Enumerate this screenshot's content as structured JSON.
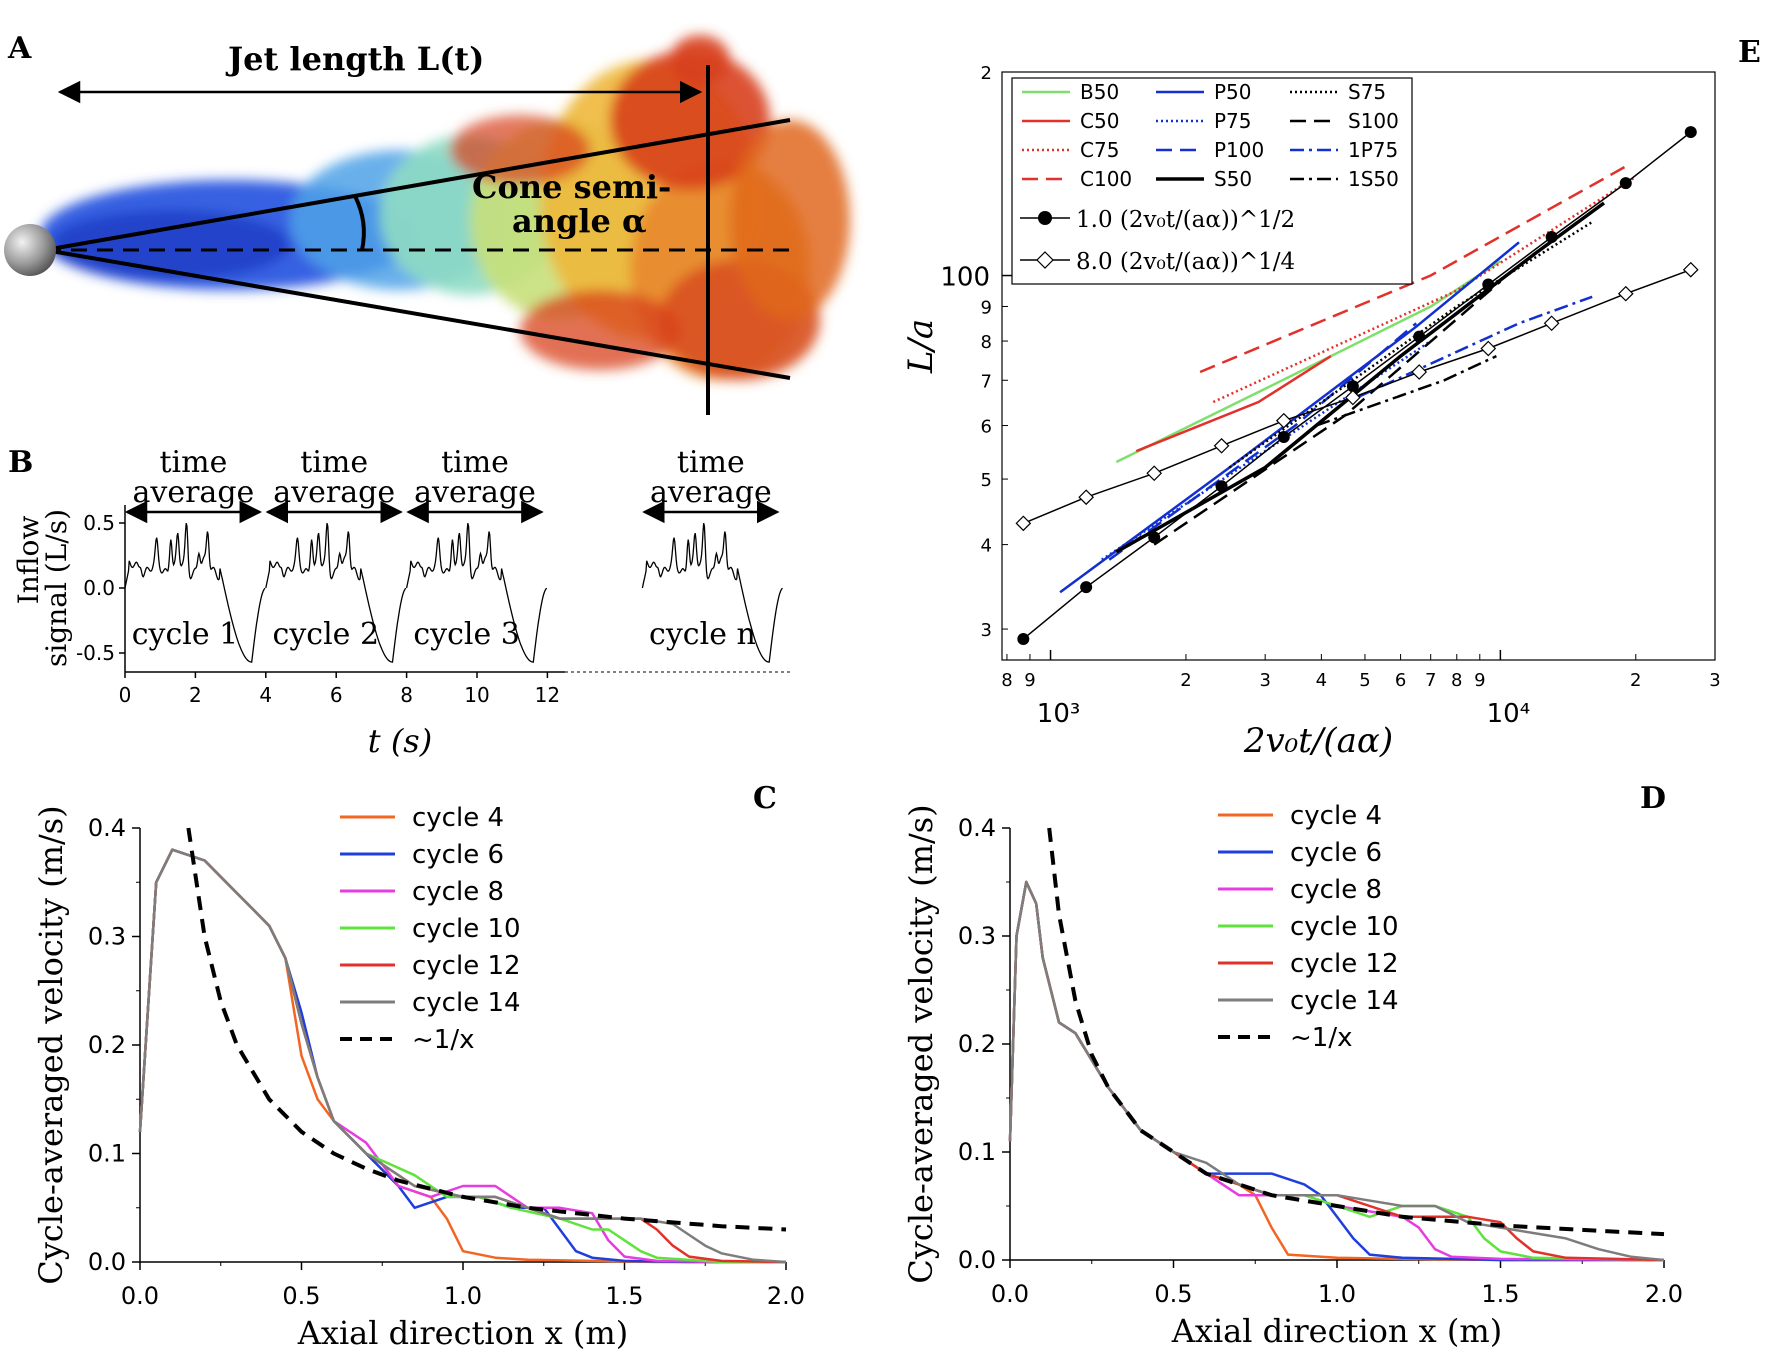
{
  "panel_labels": {
    "a": "A",
    "b": "B",
    "c": "C",
    "d": "D",
    "e": "E"
  },
  "colors": {
    "orange": "#f26522",
    "blue": "#1f3ede",
    "magenta": "#e53de0",
    "green": "#5fe33c",
    "red": "#e2302a",
    "gray": "#7d7d7d",
    "black": "#000000",
    "lightgreen": "#7ee06a",
    "deepblue": "#1230d0",
    "jet_blue": "#1e4fd8",
    "jet_cyan": "#7fd8c8",
    "jet_yellow": "#f0c030",
    "jet_red": "#d8401c"
  },
  "panel_a": {
    "jet_length_label": "Jet length L(t)",
    "cone_label_line1": "Cone semi-",
    "cone_label_line2": "angle α"
  },
  "panel_b": {
    "ylabel_line1": "Inflow",
    "ylabel_line2": "signal (L/s)",
    "xlabel": "t (s)",
    "yticks": [
      "0.5",
      "0.0",
      "-0.5"
    ],
    "xticks": [
      "0",
      "2",
      "4",
      "6",
      "8",
      "10",
      "12"
    ],
    "avg_word1": "time",
    "avg_word2": "average",
    "cycles": [
      "cycle 1",
      "cycle 2",
      "cycle 3",
      "cycle n"
    ]
  },
  "chart_data": [
    {
      "id": "C",
      "type": "line",
      "xlabel": "Axial direction x (m)",
      "ylabel": "Cycle-averaged velocity (m/s)",
      "xlim": [
        0,
        2.0
      ],
      "ylim": [
        0,
        0.4
      ],
      "xticks": [
        "0.0",
        "0.5",
        "1.0",
        "1.5",
        "2.0"
      ],
      "yticks": [
        "0.0",
        "0.1",
        "0.2",
        "0.3",
        "0.4"
      ],
      "series": [
        {
          "name": "cycle 4",
          "color": "#f26522",
          "x": [
            0,
            0.05,
            0.1,
            0.2,
            0.3,
            0.4,
            0.45,
            0.5,
            0.55,
            0.6,
            0.7,
            0.8,
            0.9,
            0.95,
            1.0,
            1.1,
            1.2,
            1.4,
            1.6,
            1.8,
            2.0
          ],
          "y": [
            0.12,
            0.35,
            0.38,
            0.37,
            0.34,
            0.31,
            0.28,
            0.19,
            0.15,
            0.13,
            0.1,
            0.07,
            0.06,
            0.04,
            0.01,
            0.004,
            0.002,
            0.001,
            0.0,
            0.0,
            0.0
          ]
        },
        {
          "name": "cycle 6",
          "color": "#1f3ede",
          "x": [
            0,
            0.05,
            0.1,
            0.2,
            0.3,
            0.4,
            0.45,
            0.5,
            0.55,
            0.6,
            0.7,
            0.8,
            0.85,
            0.95,
            1.05,
            1.15,
            1.25,
            1.3,
            1.35,
            1.4,
            1.5,
            1.7,
            2.0
          ],
          "y": [
            0.12,
            0.35,
            0.38,
            0.37,
            0.34,
            0.31,
            0.28,
            0.23,
            0.17,
            0.13,
            0.1,
            0.07,
            0.05,
            0.06,
            0.06,
            0.05,
            0.05,
            0.03,
            0.01,
            0.004,
            0.001,
            0.0,
            0.0
          ]
        },
        {
          "name": "cycle 8",
          "color": "#e53de0",
          "x": [
            0,
            0.05,
            0.1,
            0.2,
            0.3,
            0.4,
            0.45,
            0.5,
            0.55,
            0.6,
            0.7,
            0.8,
            0.9,
            1.0,
            1.1,
            1.2,
            1.3,
            1.4,
            1.45,
            1.5,
            1.6,
            1.8,
            2.0
          ],
          "y": [
            0.12,
            0.35,
            0.38,
            0.37,
            0.34,
            0.31,
            0.28,
            0.22,
            0.17,
            0.13,
            0.11,
            0.07,
            0.06,
            0.07,
            0.07,
            0.05,
            0.05,
            0.045,
            0.02,
            0.005,
            0.001,
            0.0,
            0.0
          ]
        },
        {
          "name": "cycle 10",
          "color": "#5fe33c",
          "x": [
            0,
            0.05,
            0.1,
            0.2,
            0.3,
            0.4,
            0.45,
            0.5,
            0.55,
            0.6,
            0.7,
            0.85,
            0.95,
            1.05,
            1.15,
            1.3,
            1.4,
            1.45,
            1.5,
            1.55,
            1.6,
            1.8,
            2.0
          ],
          "y": [
            0.12,
            0.35,
            0.38,
            0.37,
            0.34,
            0.31,
            0.28,
            0.22,
            0.17,
            0.13,
            0.1,
            0.08,
            0.06,
            0.06,
            0.05,
            0.04,
            0.03,
            0.03,
            0.02,
            0.01,
            0.004,
            0.0,
            0.0
          ]
        },
        {
          "name": "cycle 12",
          "color": "#e2302a",
          "x": [
            0,
            0.05,
            0.1,
            0.2,
            0.3,
            0.4,
            0.45,
            0.5,
            0.55,
            0.6,
            0.7,
            0.85,
            1.0,
            1.1,
            1.2,
            1.3,
            1.45,
            1.55,
            1.6,
            1.65,
            1.7,
            1.8,
            2.0
          ],
          "y": [
            0.12,
            0.35,
            0.38,
            0.37,
            0.34,
            0.31,
            0.28,
            0.22,
            0.17,
            0.13,
            0.1,
            0.07,
            0.06,
            0.06,
            0.05,
            0.04,
            0.04,
            0.04,
            0.03,
            0.015,
            0.005,
            0.001,
            0.0
          ]
        },
        {
          "name": "cycle 14",
          "color": "#7d7d7d",
          "x": [
            0,
            0.05,
            0.1,
            0.2,
            0.3,
            0.4,
            0.45,
            0.5,
            0.55,
            0.6,
            0.7,
            0.85,
            1.0,
            1.1,
            1.2,
            1.3,
            1.45,
            1.55,
            1.65,
            1.7,
            1.75,
            1.8,
            1.9,
            2.0
          ],
          "y": [
            0.12,
            0.35,
            0.38,
            0.37,
            0.34,
            0.31,
            0.28,
            0.22,
            0.17,
            0.13,
            0.1,
            0.07,
            0.06,
            0.06,
            0.05,
            0.04,
            0.04,
            0.04,
            0.035,
            0.025,
            0.015,
            0.008,
            0.002,
            0.0
          ]
        },
        {
          "name": "~1/x",
          "color": "#000000",
          "dash": true,
          "x": [
            0.15,
            0.2,
            0.25,
            0.3,
            0.4,
            0.5,
            0.6,
            0.7,
            0.8,
            1.0,
            1.2,
            1.5,
            1.8,
            2.0
          ],
          "y": [
            0.4,
            0.3,
            0.24,
            0.2,
            0.15,
            0.12,
            0.1,
            0.086,
            0.075,
            0.06,
            0.05,
            0.04,
            0.033,
            0.03
          ]
        }
      ]
    },
    {
      "id": "D",
      "type": "line",
      "xlabel": "Axial direction x (m)",
      "ylabel": "Cycle-averaged velocity (m/s)",
      "xlim": [
        0,
        2.0
      ],
      "ylim": [
        0,
        0.4
      ],
      "xticks": [
        "0.0",
        "0.5",
        "1.0",
        "1.5",
        "2.0"
      ],
      "yticks": [
        "0.0",
        "0.1",
        "0.2",
        "0.3",
        "0.4"
      ],
      "series": [
        {
          "name": "cycle 4",
          "color": "#f26522",
          "x": [
            0,
            0.02,
            0.05,
            0.08,
            0.1,
            0.15,
            0.2,
            0.3,
            0.4,
            0.5,
            0.6,
            0.7,
            0.75,
            0.8,
            0.85,
            1.0,
            1.2,
            1.5,
            2.0
          ],
          "y": [
            0.11,
            0.3,
            0.35,
            0.33,
            0.28,
            0.22,
            0.21,
            0.16,
            0.12,
            0.1,
            0.08,
            0.07,
            0.06,
            0.03,
            0.005,
            0.002,
            0.001,
            0.0,
            0.0
          ]
        },
        {
          "name": "cycle 6",
          "color": "#1f3ede",
          "x": [
            0,
            0.02,
            0.05,
            0.08,
            0.1,
            0.15,
            0.2,
            0.3,
            0.4,
            0.5,
            0.6,
            0.7,
            0.8,
            0.9,
            0.95,
            1.0,
            1.05,
            1.1,
            1.2,
            1.5,
            2.0
          ],
          "y": [
            0.11,
            0.3,
            0.35,
            0.33,
            0.28,
            0.22,
            0.21,
            0.16,
            0.12,
            0.1,
            0.08,
            0.08,
            0.08,
            0.07,
            0.06,
            0.04,
            0.02,
            0.005,
            0.002,
            0.0,
            0.0
          ]
        },
        {
          "name": "cycle 8",
          "color": "#e53de0",
          "x": [
            0,
            0.02,
            0.05,
            0.08,
            0.1,
            0.15,
            0.2,
            0.3,
            0.4,
            0.5,
            0.6,
            0.7,
            0.8,
            0.9,
            1.0,
            1.1,
            1.2,
            1.25,
            1.3,
            1.35,
            1.5,
            2.0
          ],
          "y": [
            0.11,
            0.3,
            0.35,
            0.33,
            0.28,
            0.22,
            0.21,
            0.16,
            0.12,
            0.1,
            0.08,
            0.06,
            0.06,
            0.06,
            0.05,
            0.045,
            0.04,
            0.03,
            0.01,
            0.003,
            0.001,
            0.0
          ]
        },
        {
          "name": "cycle 10",
          "color": "#5fe33c",
          "x": [
            0,
            0.02,
            0.05,
            0.08,
            0.1,
            0.15,
            0.2,
            0.3,
            0.4,
            0.5,
            0.6,
            0.7,
            0.8,
            0.9,
            1.0,
            1.1,
            1.2,
            1.3,
            1.4,
            1.45,
            1.5,
            1.6,
            2.0
          ],
          "y": [
            0.11,
            0.3,
            0.35,
            0.33,
            0.28,
            0.22,
            0.21,
            0.16,
            0.12,
            0.1,
            0.08,
            0.07,
            0.06,
            0.06,
            0.05,
            0.04,
            0.05,
            0.05,
            0.04,
            0.02,
            0.008,
            0.002,
            0.0
          ]
        },
        {
          "name": "cycle 12",
          "color": "#e2302a",
          "x": [
            0,
            0.02,
            0.05,
            0.08,
            0.1,
            0.15,
            0.2,
            0.3,
            0.4,
            0.5,
            0.6,
            0.7,
            0.8,
            1.0,
            1.1,
            1.2,
            1.3,
            1.4,
            1.5,
            1.55,
            1.6,
            1.7,
            2.0
          ],
          "y": [
            0.11,
            0.3,
            0.35,
            0.33,
            0.28,
            0.22,
            0.21,
            0.16,
            0.12,
            0.1,
            0.08,
            0.07,
            0.06,
            0.06,
            0.05,
            0.04,
            0.04,
            0.04,
            0.035,
            0.02,
            0.008,
            0.002,
            0.0
          ]
        },
        {
          "name": "cycle 14",
          "color": "#7d7d7d",
          "x": [
            0,
            0.02,
            0.05,
            0.08,
            0.1,
            0.15,
            0.2,
            0.3,
            0.4,
            0.5,
            0.6,
            0.7,
            0.8,
            1.0,
            1.2,
            1.3,
            1.4,
            1.5,
            1.6,
            1.7,
            1.8,
            1.9,
            2.0
          ],
          "y": [
            0.11,
            0.3,
            0.35,
            0.33,
            0.28,
            0.22,
            0.21,
            0.16,
            0.12,
            0.1,
            0.09,
            0.07,
            0.06,
            0.06,
            0.05,
            0.05,
            0.035,
            0.03,
            0.025,
            0.02,
            0.01,
            0.003,
            0.0
          ]
        },
        {
          "name": "~1/x",
          "color": "#000000",
          "dash": true,
          "x": [
            0.12,
            0.15,
            0.2,
            0.25,
            0.3,
            0.4,
            0.5,
            0.6,
            0.8,
            1.0,
            1.2,
            1.5,
            1.8,
            2.0
          ],
          "y": [
            0.4,
            0.32,
            0.24,
            0.19,
            0.16,
            0.12,
            0.1,
            0.08,
            0.06,
            0.05,
            0.04,
            0.032,
            0.027,
            0.024
          ]
        }
      ]
    },
    {
      "id": "E",
      "type": "line",
      "scale": "log-log",
      "xlabel": "2v₀t/(aα)",
      "ylabel": "L/a",
      "xlim": [
        780,
        30000
      ],
      "ylim": [
        27,
        200
      ],
      "xticks_major": [
        "10³",
        "10⁴"
      ],
      "xticks_minor": [
        "8",
        "9",
        "2",
        "3",
        "4",
        "5",
        "6",
        "7",
        "8",
        "9",
        "2",
        "3"
      ],
      "yticks_major": [
        "100"
      ],
      "yticks_minor": [
        "2",
        "3",
        "4",
        "5",
        "6",
        "7",
        "8",
        "9"
      ],
      "series": [
        {
          "name": "B50",
          "color": "#7ee06a",
          "style": "solid",
          "x": [
            1400,
            3000,
            7000,
            10000
          ],
          "y": [
            53,
            68,
            90,
            105
          ]
        },
        {
          "name": "C50",
          "color": "#e2302a",
          "style": "solid",
          "x": [
            1550,
            2900,
            4200
          ],
          "y": [
            55,
            65,
            76
          ]
        },
        {
          "name": "C75",
          "color": "#e2302a",
          "style": "dotted",
          "x": [
            2300,
            8000,
            20000
          ],
          "y": [
            65,
            95,
            140
          ]
        },
        {
          "name": "C100",
          "color": "#e2302a",
          "style": "dashed",
          "x": [
            2150,
            7000,
            19000
          ],
          "y": [
            72,
            100,
            145
          ]
        },
        {
          "name": "P50",
          "color": "#1230d0",
          "style": "solid",
          "x": [
            1050,
            2500,
            6500,
            11000
          ],
          "y": [
            34,
            52,
            84,
            112
          ]
        },
        {
          "name": "P75",
          "color": "#1230d0",
          "style": "dotted",
          "x": [
            1300,
            3000,
            7000
          ],
          "y": [
            38,
            55,
            80
          ]
        },
        {
          "name": "P100",
          "color": "#1230d0",
          "style": "dashed",
          "x": [
            1350,
            3500,
            6500
          ],
          "y": [
            38,
            60,
            85
          ]
        },
        {
          "name": "S50",
          "color": "#000000",
          "style": "solid-thick",
          "x": [
            1400,
            3000,
            6000,
            12000,
            17000
          ],
          "y": [
            39,
            52,
            76,
            108,
            128
          ]
        },
        {
          "name": "S75",
          "color": "#000000",
          "style": "dotted",
          "x": [
            2500,
            8000,
            16000
          ],
          "y": [
            52,
            90,
            120
          ]
        },
        {
          "name": "S100",
          "color": "#000000",
          "style": "dashed",
          "x": [
            1700,
            4500,
            10000
          ],
          "y": [
            40,
            62,
            98
          ]
        },
        {
          "name": "1P75",
          "color": "#1230d0",
          "style": "dashdot",
          "x": [
            4800,
            11000,
            16000
          ],
          "y": [
            66,
            85,
            93
          ]
        },
        {
          "name": "1S50",
          "color": "#000000",
          "style": "dashdot",
          "x": [
            3900,
            7500,
            9800
          ],
          "y": [
            60,
            70,
            76
          ]
        },
        {
          "name": "1.0 (2v₀t/(aα))^1/2",
          "color": "#000000",
          "style": "fit-dot",
          "x": [
            870,
            1200,
            1700,
            2400,
            3300,
            4700,
            6600,
            9400,
            13000,
            19000,
            26500
          ],
          "y": [
            29,
            34.6,
            41,
            48.8,
            57.7,
            68.6,
            81.2,
            97,
            114,
            137,
            163
          ]
        },
        {
          "name": "8.0 (2v₀t/(aα))^1/4",
          "color": "#000000",
          "style": "fit-diamond",
          "x": [
            870,
            1200,
            1700,
            2400,
            3300,
            4700,
            6600,
            9400,
            13000,
            19000,
            26500
          ],
          "y": [
            43,
            47,
            51,
            56,
            61,
            66,
            72,
            78,
            85,
            94,
            102
          ]
        }
      ]
    }
  ]
}
